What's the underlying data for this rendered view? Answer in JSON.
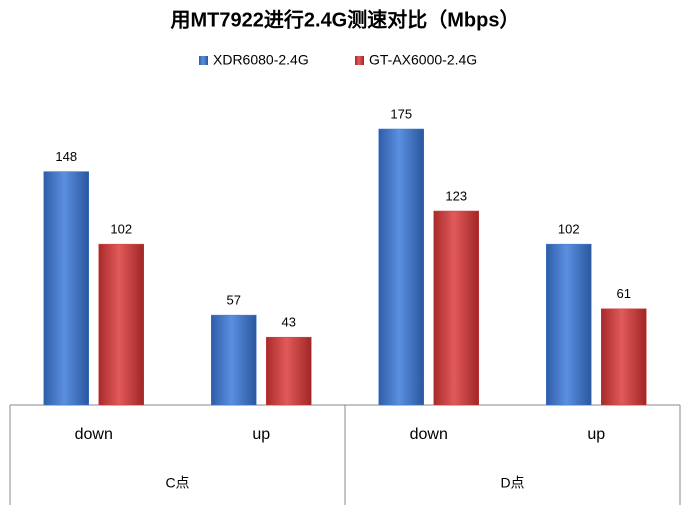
{
  "chart_data": {
    "type": "bar",
    "title": "用MT7922进行2.4G测速对比（Mbps）",
    "category_groups": [
      {
        "name": "C点",
        "categories": [
          "down",
          "up"
        ]
      },
      {
        "name": "D点",
        "categories": [
          "down",
          "up"
        ]
      }
    ],
    "series": [
      {
        "name": "XDR6080-2.4G",
        "color": "#3f74c8",
        "values": [
          148,
          57,
          175,
          102
        ]
      },
      {
        "name": "GT-AX6000-2.4G",
        "color": "#cc3b3b",
        "values": [
          102,
          43,
          123,
          61
        ]
      }
    ],
    "legend": "top"
  }
}
